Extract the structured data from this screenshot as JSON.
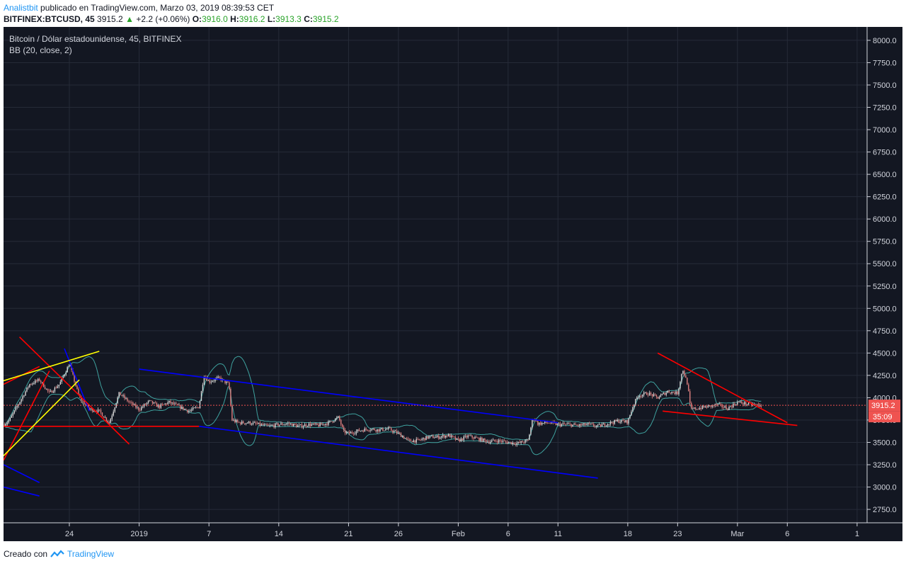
{
  "header": {
    "author": "Analistbit",
    "published": "publicado en TradingView.com, Marzo 03, 2019 08:39:53 CET",
    "symbol": "BITFINEX:BTCUSD, 45",
    "last": "3915.2",
    "change": "+2.2 (+0.06%)",
    "o_label": "O:",
    "o": "3916.0",
    "h_label": "H:",
    "h": "3916.2",
    "l_label": "L:",
    "l": "3913.3",
    "c_label": "C:",
    "c": "3915.2"
  },
  "chart_data": {
    "type": "candlestick",
    "title": "Bitcoin / Dólar estadounidense, 45, BITFINEX",
    "indicator": "BB (20, close, 2)",
    "ylim": [
      2600,
      8150
    ],
    "y_ticks": [
      "2750.0",
      "3000.0",
      "3250.0",
      "3500.0",
      "3750.0",
      "4000.0",
      "4250.0",
      "4500.0",
      "4750.0",
      "5000.0",
      "5250.0",
      "5500.0",
      "5750.0",
      "6000.0",
      "6250.0",
      "6500.0",
      "6750.0",
      "7000.0",
      "7250.0",
      "7500.0",
      "7750.0",
      "8000.0"
    ],
    "x_ticks": [
      {
        "label": "24",
        "day": 3
      },
      {
        "label": "2019",
        "day": 10
      },
      {
        "label": "7",
        "day": 17
      },
      {
        "label": "14",
        "day": 24
      },
      {
        "label": "21",
        "day": 31
      },
      {
        "label": "26",
        "day": 36
      },
      {
        "label": "Feb",
        "day": 42
      },
      {
        "label": "6",
        "day": 47
      },
      {
        "label": "11",
        "day": 52
      },
      {
        "label": "18",
        "day": 59
      },
      {
        "label": "23",
        "day": 64
      },
      {
        "label": "Mar",
        "day": 70
      },
      {
        "label": "6",
        "day": 75
      },
      {
        "label": "1",
        "day": 82
      }
    ],
    "x_range": [
      -3.6,
      83
    ],
    "last_price": "3915.2",
    "countdown": "35:09",
    "price_path": [
      [
        -3.5,
        3700
      ],
      [
        -3,
        3750
      ],
      [
        -2,
        3950
      ],
      [
        -1,
        4150
      ],
      [
        0,
        4200
      ],
      [
        1,
        4050
      ],
      [
        2,
        4150
      ],
      [
        3,
        4380
      ],
      [
        4,
        4000
      ],
      [
        5,
        3870
      ],
      [
        6,
        3850
      ],
      [
        7,
        3720
      ],
      [
        8,
        4050
      ],
      [
        9,
        3950
      ],
      [
        10,
        3870
      ],
      [
        11,
        3960
      ],
      [
        12,
        3900
      ],
      [
        13,
        3950
      ],
      [
        14,
        3900
      ],
      [
        15,
        3850
      ],
      [
        16,
        3900
      ],
      [
        16.5,
        4250
      ],
      [
        17,
        4180
      ],
      [
        18,
        4220
      ],
      [
        19,
        4150
      ],
      [
        19.3,
        3750
      ],
      [
        20,
        3720
      ],
      [
        21,
        3720
      ],
      [
        22,
        3700
      ],
      [
        23,
        3680
      ],
      [
        24,
        3700
      ],
      [
        25,
        3710
      ],
      [
        26,
        3680
      ],
      [
        27,
        3700
      ],
      [
        28,
        3690
      ],
      [
        29,
        3720
      ],
      [
        30,
        3780
      ],
      [
        30.5,
        3620
      ],
      [
        31,
        3600
      ],
      [
        32,
        3630
      ],
      [
        33,
        3650
      ],
      [
        34,
        3640
      ],
      [
        35,
        3650
      ],
      [
        36,
        3600
      ],
      [
        37,
        3520
      ],
      [
        38,
        3520
      ],
      [
        39,
        3560
      ],
      [
        40,
        3560
      ],
      [
        41,
        3580
      ],
      [
        42,
        3520
      ],
      [
        43,
        3570
      ],
      [
        44,
        3540
      ],
      [
        45,
        3510
      ],
      [
        46,
        3520
      ],
      [
        47,
        3500
      ],
      [
        48,
        3490
      ],
      [
        49,
        3520
      ],
      [
        49.5,
        3780
      ],
      [
        50,
        3710
      ],
      [
        51,
        3720
      ],
      [
        52,
        3700
      ],
      [
        53,
        3700
      ],
      [
        54,
        3690
      ],
      [
        55,
        3700
      ],
      [
        56,
        3680
      ],
      [
        57,
        3710
      ],
      [
        58,
        3740
      ],
      [
        59,
        3730
      ],
      [
        59.5,
        3900
      ],
      [
        60,
        4020
      ],
      [
        61,
        4050
      ],
      [
        62,
        4000
      ],
      [
        63,
        4070
      ],
      [
        64,
        4050
      ],
      [
        64.5,
        4320
      ],
      [
        65,
        4150
      ],
      [
        65.3,
        3870
      ],
      [
        66,
        3880
      ],
      [
        67,
        3900
      ],
      [
        68,
        3920
      ],
      [
        69,
        3880
      ],
      [
        70,
        3950
      ],
      [
        71,
        3930
      ],
      [
        72,
        3920
      ],
      [
        72.5,
        3915
      ]
    ],
    "trend_lines": [
      {
        "color": "#0000ff",
        "from": [
          10,
          4320
        ],
        "to": [
          52,
          3720
        ]
      },
      {
        "color": "#0000ff",
        "from": [
          16,
          3680
        ],
        "to": [
          56,
          3100
        ]
      },
      {
        "color": "#0000ff",
        "from": [
          -3.6,
          3250
        ],
        "to": [
          0,
          3050
        ]
      },
      {
        "color": "#0000ff",
        "from": [
          -3.6,
          3000
        ],
        "to": [
          0,
          2900
        ]
      },
      {
        "color": "#0000ff",
        "from": [
          2.5,
          4550
        ],
        "to": [
          5,
          3850
        ]
      },
      {
        "color": "#ff0000",
        "from": [
          -2,
          4680
        ],
        "to": [
          9,
          3480
        ]
      },
      {
        "color": "#ff0000",
        "from": [
          -3.6,
          3680
        ],
        "to": [
          16,
          3680
        ]
      },
      {
        "color": "#ff0000",
        "from": [
          -3.6,
          4150
        ],
        "to": [
          0,
          4350
        ]
      },
      {
        "color": "#ff0000",
        "from": [
          -3.6,
          3300
        ],
        "to": [
          1,
          4300
        ]
      },
      {
        "color": "#ff0000",
        "from": [
          62,
          4500
        ],
        "to": [
          75,
          3720
        ]
      },
      {
        "color": "#ff0000",
        "from": [
          62.5,
          3850
        ],
        "to": [
          76,
          3690
        ]
      },
      {
        "color": "#ffff00",
        "from": [
          -3.6,
          3350
        ],
        "to": [
          4,
          4200
        ]
      },
      {
        "color": "#ffff00",
        "from": [
          -3.6,
          4190
        ],
        "to": [
          6,
          4520
        ]
      }
    ]
  },
  "footer": {
    "made_with": "Creado con",
    "brand": "TradingView"
  }
}
